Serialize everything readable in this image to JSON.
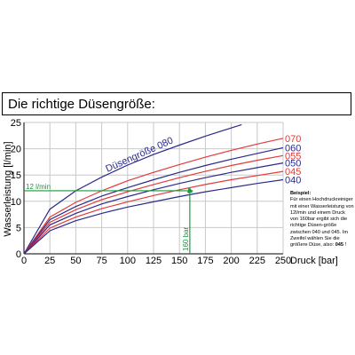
{
  "page_title": "Die richtige Düsengröße:",
  "note": {
    "title": "Beispiel:",
    "text": "Für einen Hochdruckreiniger mit einer Wasserleistung von 12l/min und einem Druck von 160bar ergibt sich die richtige Düsen-größe zwischen 040 und 045. Im Zweifel wählen Sie die größere Düse, also:",
    "answer": "045",
    "suffix": " !"
  },
  "chart_data": {
    "type": "line",
    "title": "",
    "xlabel": "Druck [bar]",
    "ylabel": "Wasserleistung [l/min]",
    "xlim": [
      0,
      250
    ],
    "ylim": [
      0,
      25
    ],
    "x_ticks": [
      0,
      25,
      50,
      75,
      100,
      125,
      150,
      175,
      200,
      225,
      250
    ],
    "y_ticks": [
      0,
      5,
      10,
      15,
      20,
      25
    ],
    "grid": true,
    "diagonal_label": "Düsengröße 080",
    "colors": {
      "blue": "#2a2a8c",
      "red": "#e23b3b",
      "green": "#1a9a3c"
    },
    "series": [
      {
        "name": "080",
        "color": "blue",
        "labeled_in_curve": true,
        "x": [
          0,
          25,
          50,
          75,
          100,
          125,
          150,
          175,
          210
        ],
        "y": [
          0,
          8.5,
          12.0,
          14.6,
          16.9,
          18.9,
          20.7,
          22.4,
          24.6
        ]
      },
      {
        "name": "070",
        "color": "red",
        "x": [
          0,
          25,
          50,
          75,
          100,
          125,
          150,
          175,
          200,
          225,
          250
        ],
        "y": [
          0,
          7.0,
          9.8,
          12.0,
          13.9,
          15.5,
          17.0,
          18.4,
          19.7,
          20.9,
          22.0
        ]
      },
      {
        "name": "060",
        "color": "blue",
        "x": [
          0,
          25,
          50,
          75,
          100,
          125,
          150,
          175,
          200,
          225,
          250
        ],
        "y": [
          0,
          6.5,
          9.0,
          11.0,
          12.6,
          14.1,
          15.5,
          16.8,
          18.0,
          19.1,
          20.2
        ]
      },
      {
        "name": "055",
        "color": "red",
        "x": [
          0,
          25,
          50,
          75,
          100,
          125,
          150,
          175,
          200,
          225,
          250
        ],
        "y": [
          0,
          6.0,
          8.4,
          10.3,
          11.8,
          13.2,
          14.5,
          15.7,
          16.8,
          17.8,
          18.7
        ]
      },
      {
        "name": "050",
        "color": "blue",
        "x": [
          0,
          25,
          50,
          75,
          100,
          125,
          150,
          175,
          200,
          225,
          250
        ],
        "y": [
          0,
          5.5,
          7.7,
          9.5,
          10.9,
          12.2,
          13.4,
          14.5,
          15.5,
          16.4,
          17.3
        ]
      },
      {
        "name": "045",
        "color": "red",
        "x": [
          0,
          25,
          50,
          75,
          100,
          125,
          150,
          175,
          200,
          225,
          250
        ],
        "y": [
          0,
          4.9,
          7.0,
          8.6,
          9.9,
          11.1,
          12.2,
          13.2,
          14.1,
          14.9,
          15.7
        ]
      },
      {
        "name": "040",
        "color": "blue",
        "x": [
          0,
          25,
          50,
          75,
          100,
          125,
          150,
          175,
          200,
          225,
          250
        ],
        "y": [
          0,
          4.4,
          6.3,
          7.7,
          8.9,
          9.9,
          10.9,
          11.8,
          12.6,
          13.4,
          14.1
        ]
      }
    ],
    "example": {
      "pressure": 160,
      "flow": 12,
      "flow_label": "12 l/min",
      "pressure_label": "160 bar"
    }
  }
}
